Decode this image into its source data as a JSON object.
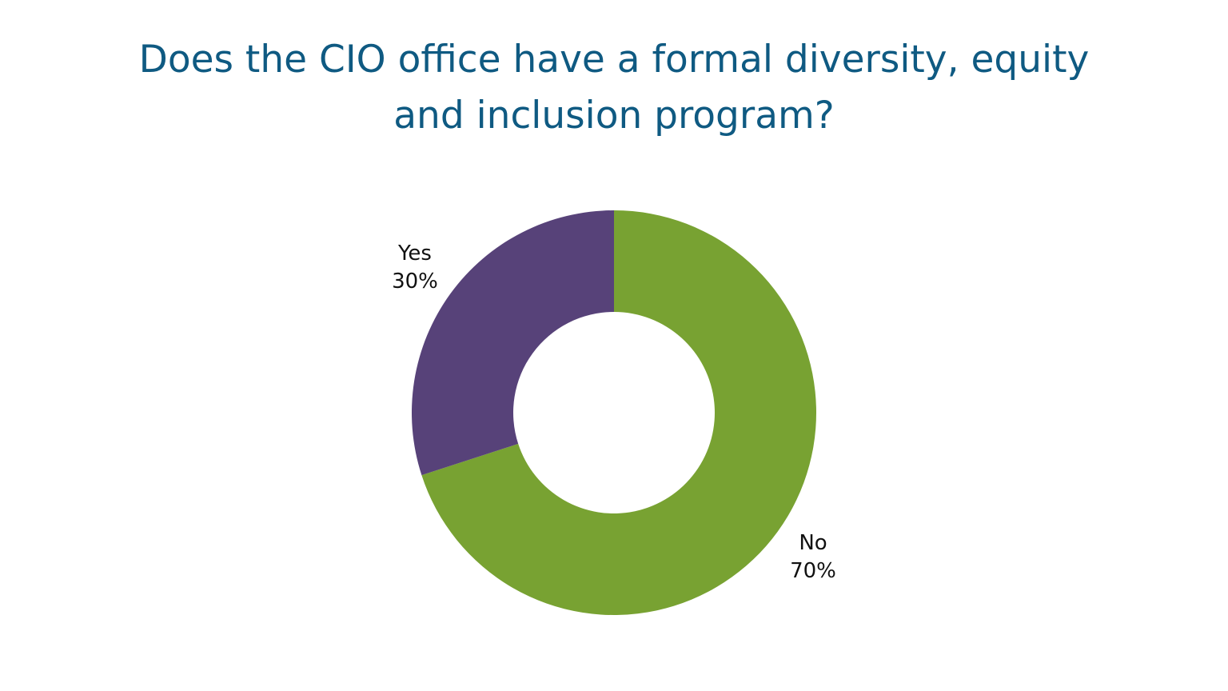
{
  "chart_data": {
    "type": "pie",
    "variant": "donut",
    "title_lines": [
      "Does the CIO office have a formal diversity, equity",
      "and inclusion program?"
    ],
    "categories": [
      "No",
      "Yes"
    ],
    "values": [
      70,
      30
    ],
    "value_labels": [
      "70%",
      "30%"
    ],
    "colors": [
      "#78a232",
      "#574279"
    ],
    "legend": "none",
    "start": "top, clockwise"
  }
}
